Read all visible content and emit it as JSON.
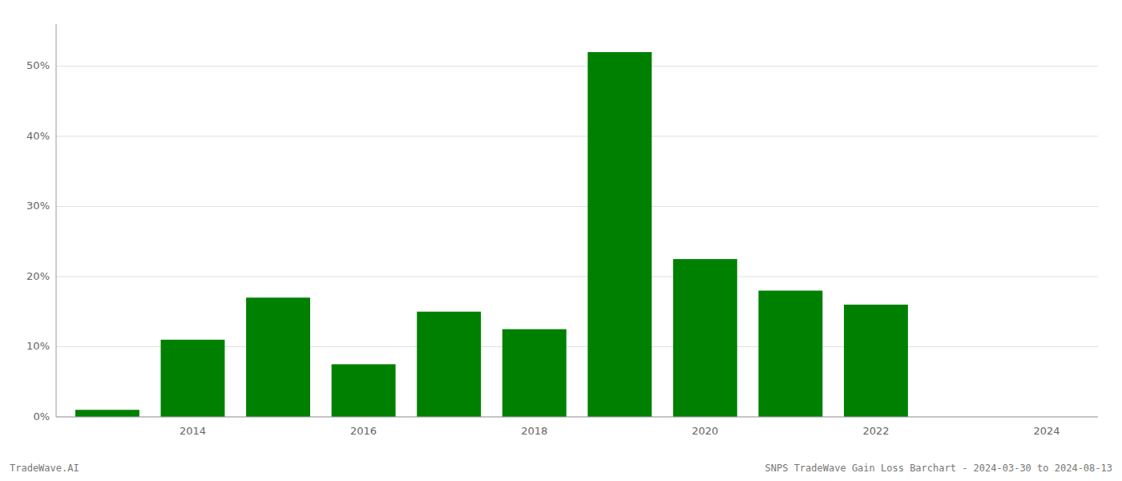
{
  "chart_data": {
    "type": "bar",
    "x": [
      2013,
      2014,
      2015,
      2016,
      2017,
      2018,
      2019,
      2020,
      2021,
      2022,
      2023
    ],
    "values": [
      1.0,
      11.0,
      17.0,
      7.5,
      15.0,
      12.5,
      52.0,
      22.5,
      18.0,
      16.0,
      0.0
    ],
    "color": "#008000",
    "xlim": [
      2012.4,
      2024.6
    ],
    "xticks": [
      2014,
      2016,
      2018,
      2020,
      2022,
      2024
    ],
    "ylim": [
      0,
      56
    ],
    "yticks": [
      {
        "value": 0,
        "label": "0%"
      },
      {
        "value": 10,
        "label": "10%"
      },
      {
        "value": 20,
        "label": "20%"
      },
      {
        "value": 30,
        "label": "30%"
      },
      {
        "value": 40,
        "label": "40%"
      },
      {
        "value": 50,
        "label": "50%"
      }
    ],
    "grid": true,
    "annotations": [
      "TradeWave.AI",
      "SNPS TradeWave Gain Loss Barchart - 2024-03-30 to 2024-08-13"
    ]
  }
}
